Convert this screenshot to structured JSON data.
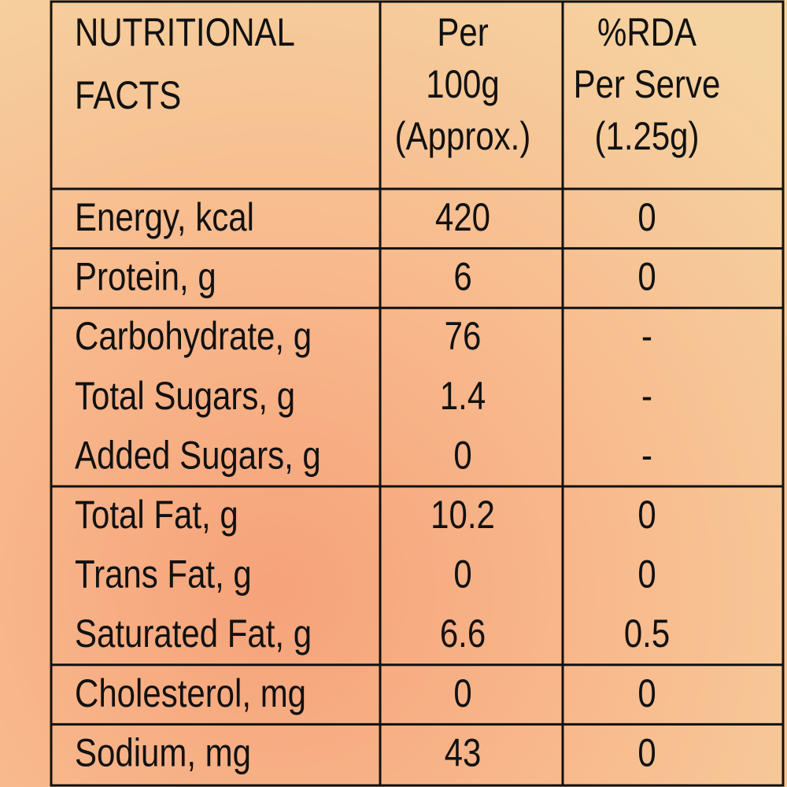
{
  "header": {
    "nutrient": [
      "NUTRITIONAL",
      "FACTS"
    ],
    "per_100g": [
      "Per",
      "100g",
      "(Approx.)"
    ],
    "rda": [
      "%RDA",
      "Per Serve",
      "(1.25g)"
    ]
  },
  "rows": [
    [
      "Energy, kcal",
      "420",
      "0"
    ],
    [
      "Protein, g",
      "6",
      "0"
    ],
    [
      "Carbohydrate, g",
      "76",
      "-"
    ],
    [
      "Total Sugars, g",
      "1.4",
      "-"
    ],
    [
      "Added Sugars, g",
      "0",
      "-"
    ],
    [
      "Total Fat, g",
      "10.2",
      "0"
    ],
    [
      "Trans Fat, g",
      "0",
      "0"
    ],
    [
      "Saturated Fat, g",
      "6.6",
      "0.5"
    ],
    [
      "Cholesterol, mg",
      "0",
      "0"
    ],
    [
      "Sodium, mg",
      "43",
      "0"
    ]
  ]
}
